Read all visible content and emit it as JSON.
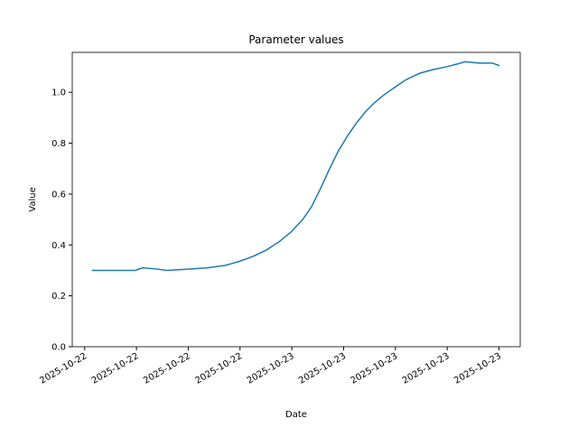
{
  "chart_data": {
    "type": "line",
    "title": "Parameter values",
    "x_label": "Date",
    "y_label": "Value",
    "x": [
      0.14,
      0.63,
      0.98,
      1.12,
      1.41,
      1.59,
      2.02,
      2.37,
      2.72,
      2.98,
      3.25,
      3.51,
      3.77,
      3.98,
      4.21,
      4.38,
      4.55,
      4.73,
      4.9,
      5.08,
      5.25,
      5.43,
      5.6,
      5.78,
      5.99,
      6.21,
      6.47,
      6.74,
      6.98,
      7.17,
      7.35,
      7.61,
      7.87,
      8.01
    ],
    "series": [
      {
        "color": "#1f77b4",
        "values": [
          0.3,
          0.3,
          0.3,
          0.31,
          0.305,
          0.3,
          0.305,
          0.31,
          0.32,
          0.335,
          0.355,
          0.38,
          0.415,
          0.45,
          0.5,
          0.55,
          0.62,
          0.7,
          0.77,
          0.83,
          0.88,
          0.925,
          0.96,
          0.99,
          1.02,
          1.05,
          1.075,
          1.09,
          1.1,
          1.11,
          1.12,
          1.115,
          1.115,
          1.105
        ]
      }
    ],
    "xlim": [
      -0.24,
      8.41
    ],
    "xticks": [
      {
        "value": 0,
        "label": "2025-10-22"
      },
      {
        "value": 1,
        "label": "2025-10-22"
      },
      {
        "value": 2,
        "label": "2025-10-22"
      },
      {
        "value": 3,
        "label": "2025-10-22"
      },
      {
        "value": 4,
        "label": "2025-10-23"
      },
      {
        "value": 5,
        "label": "2025-10-23"
      },
      {
        "value": 6,
        "label": "2025-10-23"
      },
      {
        "value": 7,
        "label": "2025-10-23"
      },
      {
        "value": 8,
        "label": "2025-10-23"
      }
    ],
    "ylim": [
      0,
      1.157
    ],
    "yticks": [
      {
        "value": 0,
        "label": "0.0"
      },
      0.2,
      0.4,
      0.6,
      0.8,
      {
        "value": 1,
        "label": "1.0"
      }
    ],
    "grid": false
  }
}
